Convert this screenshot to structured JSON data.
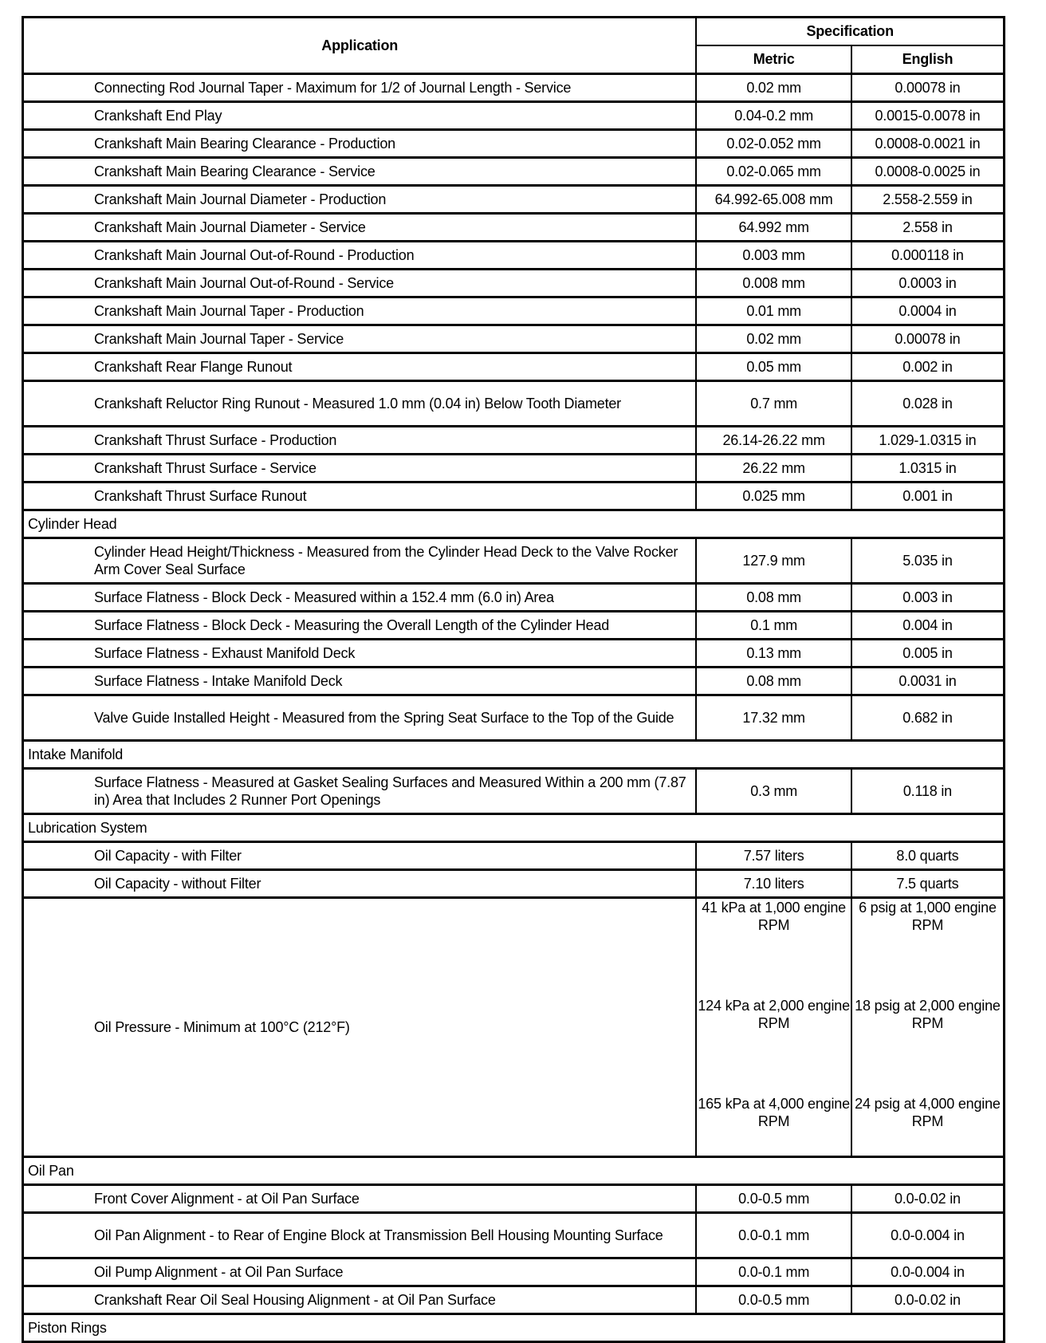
{
  "header": {
    "application": "Application",
    "specification": "Specification",
    "metric": "Metric",
    "english": "English"
  },
  "rows": [
    {
      "app": "Connecting Rod Journal Taper - Maximum for 1/2 of Journal Length - Service",
      "metric": "0.02 mm",
      "english": "0.00078 in"
    },
    {
      "app": "Crankshaft End Play",
      "metric": "0.04-0.2 mm",
      "english": "0.0015-0.0078 in"
    },
    {
      "app": "Crankshaft Main Bearing Clearance - Production",
      "metric": "0.02-0.052 mm",
      "english": "0.0008-0.0021 in"
    },
    {
      "app": "Crankshaft Main Bearing Clearance - Service",
      "metric": "0.02-0.065 mm",
      "english": "0.0008-0.0025 in"
    },
    {
      "app": "Crankshaft Main Journal Diameter - Production",
      "metric": "64.992-65.008 mm",
      "english": "2.558-2.559 in"
    },
    {
      "app": "Crankshaft Main Journal Diameter - Service",
      "metric": "64.992 mm",
      "english": "2.558 in"
    },
    {
      "app": "Crankshaft Main Journal Out-of-Round - Production",
      "metric": "0.003 mm",
      "english": "0.000118 in"
    },
    {
      "app": "Crankshaft Main Journal Out-of-Round - Service",
      "metric": "0.008 mm",
      "english": "0.0003 in"
    },
    {
      "app": "Crankshaft Main Journal Taper - Production",
      "metric": "0.01 mm",
      "english": "0.0004 in"
    },
    {
      "app": "Crankshaft Main Journal Taper - Service",
      "metric": "0.02 mm",
      "english": "0.00078 in"
    },
    {
      "app": "Crankshaft Rear Flange Runout",
      "metric": "0.05 mm",
      "english": "0.002 in"
    },
    {
      "app": "Crankshaft Reluctor Ring Runout - Measured 1.0 mm (0.04 in) Below Tooth Diameter",
      "metric": "0.7 mm",
      "english": "0.028 in",
      "two": true
    },
    {
      "app": "Crankshaft Thrust Surface - Production",
      "metric": "26.14-26.22 mm",
      "english": "1.029-1.0315 in"
    },
    {
      "app": "Crankshaft Thrust Surface - Service",
      "metric": "26.22 mm",
      "english": "1.0315 in"
    },
    {
      "app": "Crankshaft Thrust Surface Runout",
      "metric": "0.025 mm",
      "english": "0.001 in"
    },
    {
      "section": "Cylinder Head"
    },
    {
      "app": "Cylinder Head Height/Thickness - Measured from the Cylinder Head Deck to the Valve Rocker Arm Cover Seal Surface",
      "metric": "127.9 mm",
      "english": "5.035 in",
      "two": true
    },
    {
      "app": "Surface Flatness - Block Deck - Measured within a 152.4 mm (6.0 in) Area",
      "metric": "0.08 mm",
      "english": "0.003 in"
    },
    {
      "app": "Surface Flatness - Block Deck - Measuring the Overall Length of the Cylinder Head",
      "metric": "0.1 mm",
      "english": "0.004 in"
    },
    {
      "app": "Surface Flatness - Exhaust Manifold Deck",
      "metric": "0.13 mm",
      "english": "0.005 in"
    },
    {
      "app": "Surface Flatness - Intake Manifold Deck",
      "metric": "0.08 mm",
      "english": "0.0031 in"
    },
    {
      "app": "Valve Guide Installed Height - Measured from the Spring Seat Surface to the Top of the Guide",
      "metric": "17.32 mm",
      "english": "0.682 in",
      "two": true
    },
    {
      "section": "Intake Manifold"
    },
    {
      "app": "Surface Flatness - Measured at Gasket Sealing Surfaces and Measured Within a 200 mm (7.87 in) Area that Includes 2 Runner Port Openings",
      "metric": "0.3 mm",
      "english": "0.118 in",
      "two": true
    },
    {
      "section": "Lubrication System"
    },
    {
      "app": "Oil Capacity - with Filter",
      "metric": "7.57 liters",
      "english": "8.0 quarts"
    },
    {
      "app": "Oil Capacity - without Filter",
      "metric": "7.10 liters",
      "english": "7.5 quarts"
    },
    {
      "app": "Oil Pressure - Minimum at 100°C (212°F)",
      "metric_list": [
        "41 kPa at 1,000 engine RPM",
        "124 kPa at 2,000 engine RPM",
        "165 kPa at 4,000 engine RPM"
      ],
      "english_list": [
        "6 psig at 1,000 engine RPM",
        "18 psig at 2,000 engine RPM",
        "24 psig at 4,000 engine RPM"
      ]
    },
    {
      "section": "Oil Pan"
    },
    {
      "app": "Front Cover Alignment - at Oil Pan Surface",
      "metric": "0.0-0.5 mm",
      "english": "0.0-0.02 in"
    },
    {
      "app": "Oil Pan Alignment - to Rear of Engine Block at Transmission Bell Housing Mounting Surface",
      "metric": "0.0-0.1 mm",
      "english": "0.0-0.004 in",
      "two": true
    },
    {
      "app": "Oil Pump Alignment - at Oil Pan Surface",
      "metric": "0.0-0.1 mm",
      "english": "0.0-0.004 in"
    },
    {
      "app": "Crankshaft Rear Oil Seal Housing Alignment - at Oil Pan Surface",
      "metric": "0.0-0.5 mm",
      "english": "0.0-0.02 in"
    },
    {
      "section": "Piston Rings"
    }
  ]
}
